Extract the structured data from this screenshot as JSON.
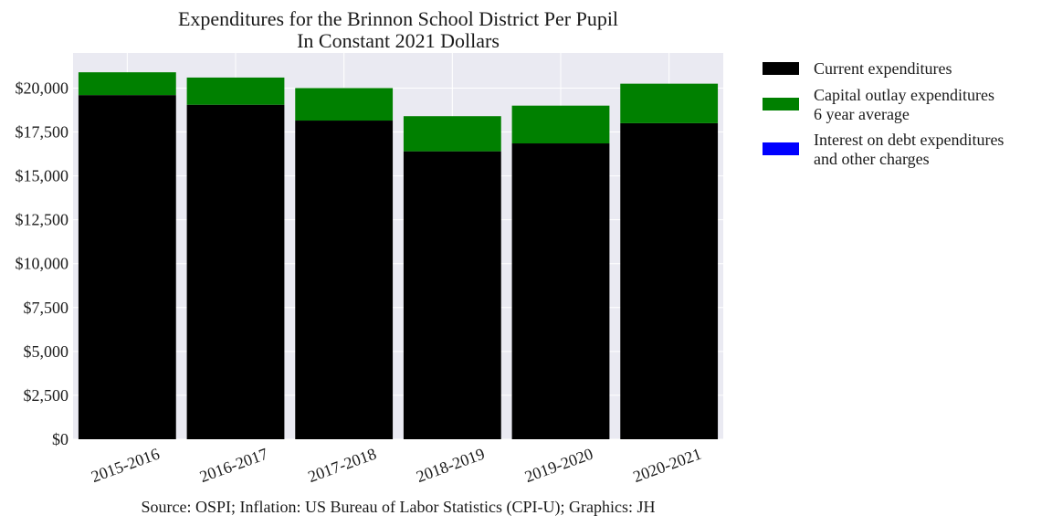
{
  "chart_data": {
    "type": "bar",
    "stacked": true,
    "title": [
      "Expenditures for the Brinnon School District Per Pupil",
      "In Constant 2021 Dollars"
    ],
    "categories": [
      "2015-2016",
      "2016-2017",
      "2017-2018",
      "2018-2019",
      "2019-2020",
      "2020-2021"
    ],
    "series": [
      {
        "name": "Current expenditures",
        "color": "#000000",
        "values": [
          19600,
          19050,
          18150,
          16400,
          16850,
          18000
        ]
      },
      {
        "name": "Capital outlay expenditures\n6 year average",
        "color": "#008000",
        "values": [
          1300,
          1550,
          1850,
          2000,
          2150,
          2250
        ]
      },
      {
        "name": "Interest on debt expenditures\nand other charges",
        "color": "#0000ff",
        "values": [
          0,
          0,
          0,
          0,
          0,
          0
        ]
      }
    ],
    "ylim": [
      0,
      22000
    ],
    "yticks": [
      0,
      2500,
      5000,
      7500,
      10000,
      12500,
      15000,
      17500,
      20000
    ],
    "ytick_labels": [
      "$0",
      "$2,500",
      "$5,000",
      "$7,500",
      "$10,000",
      "$12,500",
      "$15,000",
      "$17,500",
      "$20,000"
    ],
    "grid": true,
    "legend_position": "outside right, top",
    "plot_background": "#eaeaf2",
    "source": "Source: OSPI; Inflation: US Bureau of Labor Statistics (CPI-U); Graphics: JH"
  }
}
